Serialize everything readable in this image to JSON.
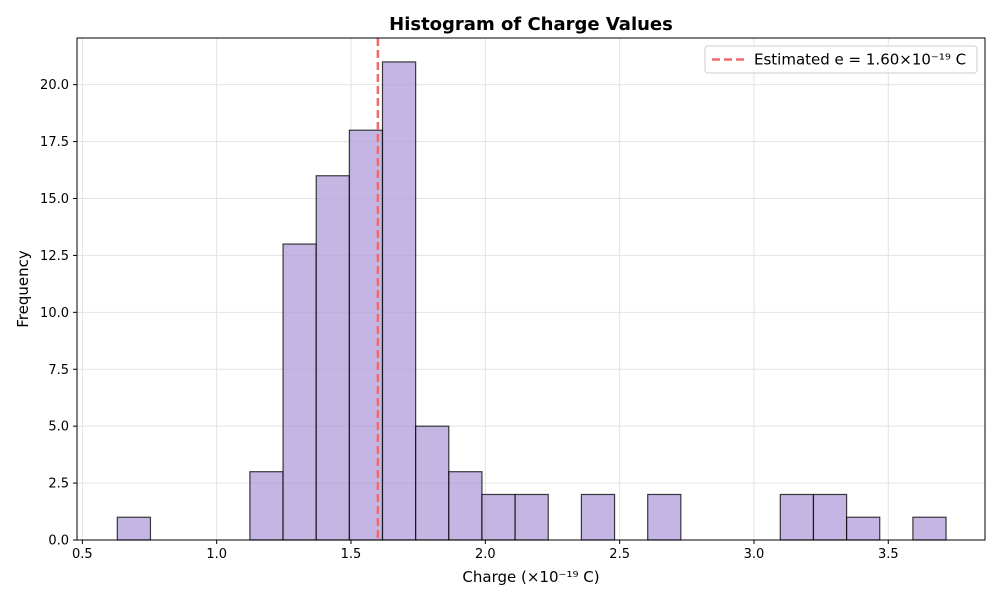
{
  "chart_data": {
    "type": "bar",
    "title": "Histogram of Charge Values",
    "xlabel": "Charge (×10⁻¹⁹ C)",
    "ylabel": "Frequency",
    "xlim": [
      0.48,
      3.86
    ],
    "ylim": [
      0,
      22.05
    ],
    "xticks": [
      0.5,
      1.0,
      1.5,
      2.0,
      2.5,
      3.0,
      3.5
    ],
    "xtick_labels": [
      "0.5",
      "1.0",
      "1.5",
      "2.0",
      "2.5",
      "3.0",
      "3.5"
    ],
    "yticks": [
      0.0,
      2.5,
      5.0,
      7.5,
      10.0,
      12.5,
      15.0,
      17.5,
      20.0
    ],
    "ytick_labels": [
      "0.0",
      "2.5",
      "5.0",
      "7.5",
      "10.0",
      "12.5",
      "15.0",
      "17.5",
      "20.0"
    ],
    "grid": true,
    "bin_start": 0.63,
    "bin_width": 0.1234,
    "counts": [
      1,
      0,
      0,
      0,
      3,
      13,
      16,
      18,
      21,
      5,
      3,
      2,
      2,
      0,
      2,
      0,
      2,
      0,
      0,
      0,
      2,
      2,
      1,
      0,
      1
    ],
    "bar_color": "#b19cd9",
    "bar_edge_color": "#000000",
    "reference_line": {
      "value": 1.6,
      "label": "Estimated e = 1.60×10⁻¹⁹ C",
      "color": "#f06b6b",
      "style": "dashed"
    },
    "legend_position": "top-right"
  }
}
